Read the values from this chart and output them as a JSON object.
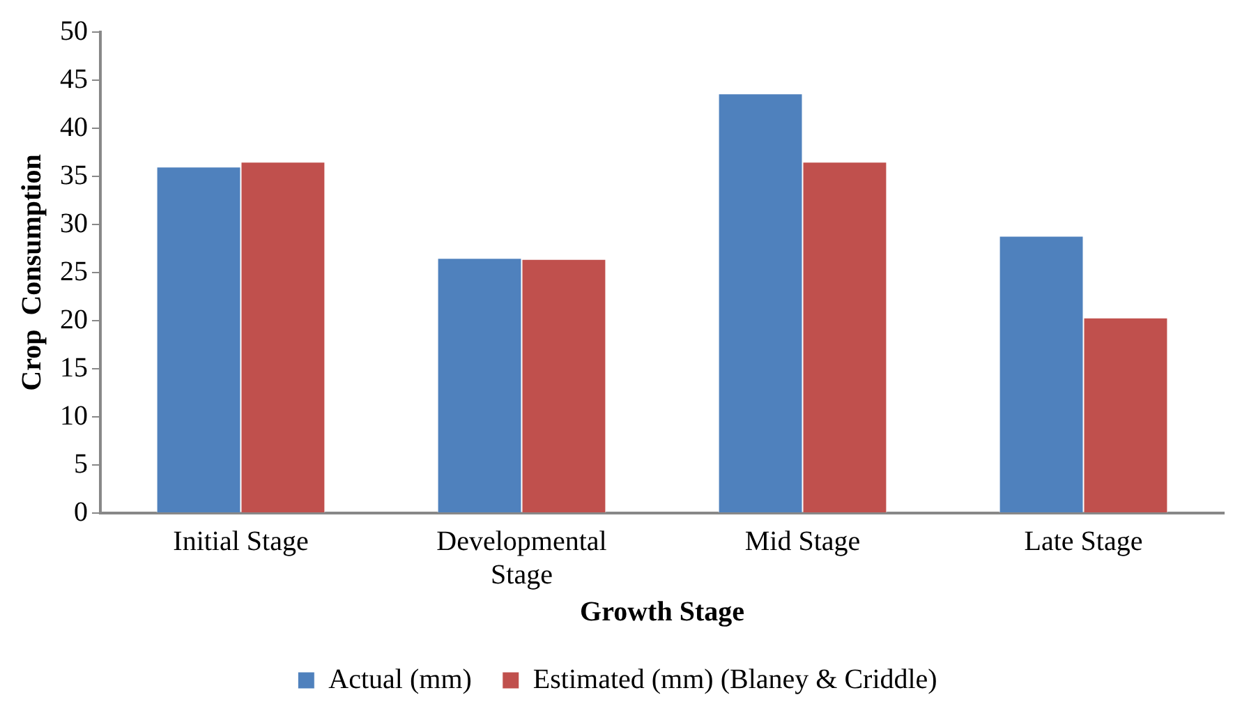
{
  "chart_data": {
    "type": "bar",
    "xlabel": "Growth Stage",
    "ylabel": "Crop  Consumption",
    "categories": [
      "Initial Stage",
      "Developmental Stage",
      "Mid Stage",
      "Late Stage"
    ],
    "series": [
      {
        "name": "Actual (mm)",
        "color": "#4f81bd",
        "values": [
          36.0,
          26.5,
          43.6,
          28.8
        ]
      },
      {
        "name": "Estimated (mm) (Blaney & Criddle)",
        "color": "#c0504d",
        "values": [
          36.5,
          26.4,
          36.5,
          20.3
        ]
      }
    ],
    "ylim": [
      0,
      50
    ],
    "yticks": [
      0,
      5,
      10,
      15,
      20,
      25,
      30,
      35,
      40,
      45,
      50
    ],
    "grid": false,
    "legend": "bottom"
  }
}
